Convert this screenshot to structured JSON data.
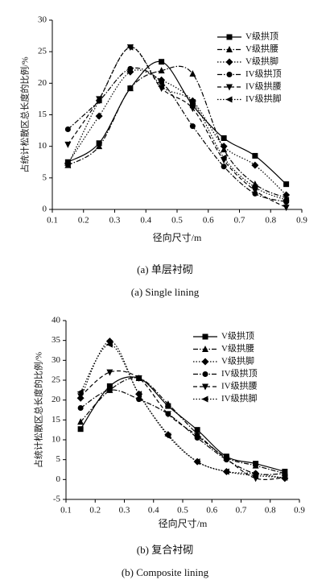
{
  "chart_data": [
    {
      "type": "line",
      "ylabel": "占统计松散区总长度的比例/%",
      "xlabel": "径向尺寸/m",
      "caption": "(a) 单层衬砌",
      "caption_en": "(a) Single lining",
      "xlim": [
        0.1,
        0.9
      ],
      "xticks": [
        0.1,
        0.2,
        0.3,
        0.4,
        0.5,
        0.6,
        0.7,
        0.8,
        0.9
      ],
      "ylim": [
        0,
        30
      ],
      "yticks": [
        0,
        5,
        10,
        15,
        20,
        25,
        30
      ],
      "x": [
        0.15,
        0.25,
        0.35,
        0.45,
        0.55,
        0.65,
        0.75,
        0.85
      ],
      "series": [
        {
          "name": "V级拱顶",
          "color": "#000000",
          "marker": "square",
          "dash": "solid",
          "values": [
            7.5,
            10.5,
            19.2,
            23.4,
            16.5,
            11.3,
            8.5,
            4.0
          ]
        },
        {
          "name": "V级拱腰",
          "color": "#000000",
          "marker": "triangle-up",
          "dash": "dash-dot",
          "values": [
            7.0,
            10.0,
            19.2,
            22.0,
            21.5,
            9.5,
            4.0,
            1.8
          ]
        },
        {
          "name": "V级拱脚",
          "color": "#000000",
          "marker": "diamond",
          "dash": "dotted",
          "values": [
            7.3,
            14.8,
            21.8,
            20.5,
            17.2,
            10.0,
            7.0,
            2.3
          ]
        },
        {
          "name": "IV级拱顶",
          "color": "#000000",
          "marker": "circle",
          "dash": "dash-dot",
          "values": [
            12.7,
            17.2,
            22.3,
            20.2,
            13.2,
            6.8,
            2.5,
            1.2
          ]
        },
        {
          "name": "IV级拱腰",
          "color": "#000000",
          "marker": "triangle-down",
          "dash": "dashed",
          "values": [
            10.3,
            17.5,
            25.7,
            19.2,
            16.0,
            7.8,
            3.0,
            0.3
          ]
        },
        {
          "name": "IV级拱脚",
          "color": "#000000",
          "marker": "triangle-left",
          "dash": "dotted",
          "values": [
            7.0,
            17.3,
            25.7,
            19.5,
            17.0,
            8.2,
            3.5,
            1.5
          ]
        }
      ]
    },
    {
      "type": "line",
      "ylabel": "占统计松散区总长度的比例/%",
      "xlabel": "径向尺寸/m",
      "caption": "(b) 复合衬砌",
      "caption_en": "(b) Composite lining",
      "xlim": [
        0.1,
        0.9
      ],
      "xticks": [
        0.1,
        0.2,
        0.3,
        0.4,
        0.5,
        0.6,
        0.7,
        0.8,
        0.9
      ],
      "ylim": [
        -5,
        40
      ],
      "yticks": [
        -5,
        0,
        5,
        10,
        15,
        20,
        25,
        30,
        35,
        40
      ],
      "x": [
        0.15,
        0.25,
        0.35,
        0.45,
        0.55,
        0.65,
        0.75,
        0.85
      ],
      "series": [
        {
          "name": "V级拱顶",
          "color": "#000000",
          "marker": "square",
          "dash": "solid",
          "values": [
            12.7,
            23.5,
            25.5,
            18.5,
            12.5,
            5.8,
            4.0,
            2.0
          ]
        },
        {
          "name": "V级拱腰",
          "color": "#000000",
          "marker": "triangle-up",
          "dash": "dash-dot",
          "values": [
            14.5,
            22.5,
            25.5,
            19.0,
            11.5,
            5.5,
            3.5,
            1.5
          ]
        },
        {
          "name": "V级拱脚",
          "color": "#000000",
          "marker": "diamond",
          "dash": "dotted",
          "values": [
            20.5,
            34.8,
            21.5,
            11.3,
            4.5,
            2.0,
            1.5,
            0.3
          ]
        },
        {
          "name": "IV级拱顶",
          "color": "#000000",
          "marker": "circle",
          "dash": "dash-dot",
          "values": [
            18.0,
            22.5,
            20.2,
            16.5,
            10.5,
            5.0,
            1.5,
            1.5
          ]
        },
        {
          "name": "IV级拱腰",
          "color": "#000000",
          "marker": "triangle-down",
          "dash": "dashed",
          "values": [
            21.0,
            27.0,
            25.5,
            16.5,
            11.0,
            5.2,
            0.3,
            0.5
          ]
        },
        {
          "name": "IV级拱脚",
          "color": "#000000",
          "marker": "triangle-left",
          "dash": "dotted",
          "values": [
            22.0,
            34.0,
            21.5,
            11.0,
            4.5,
            2.0,
            1.0,
            0.5
          ]
        }
      ]
    }
  ]
}
